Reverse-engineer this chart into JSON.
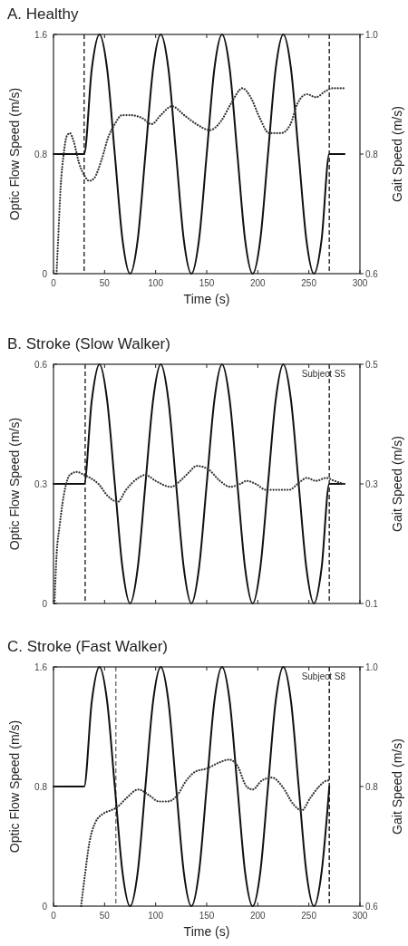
{
  "chart_data": [
    {
      "type": "line",
      "title": "A. Healthy",
      "xlabel": "Time (s)",
      "ylabel": "Optic Flow Speed (m/s)",
      "y2label": "Gait Speed (m/s)",
      "xlim": [
        0,
        300
      ],
      "xticks": [
        0,
        50,
        100,
        150,
        200,
        250,
        300
      ],
      "ylim": [
        0,
        1.6
      ],
      "yticks": [
        0,
        0.8,
        1.6
      ],
      "y2lim": [
        0.6,
        1.0
      ],
      "y2ticks": [
        0.6,
        0.8,
        {
          "value": 1.0,
          "label": "1.0"
        }
      ],
      "series": [
        {
          "color": "#111111",
          "line_style": "solid",
          "x": [
            0,
            30,
            37.5,
            45,
            52.5,
            60,
            67.5,
            75,
            82.5,
            90,
            97.5,
            105,
            112.5,
            120,
            127.5,
            135,
            142.5,
            150,
            157.5,
            165,
            172.5,
            180,
            187.5,
            195,
            202.5,
            210,
            217.5,
            225,
            232.5,
            240,
            247.5,
            255,
            262.5,
            270,
            285
          ],
          "values": [
            0.8,
            0.8,
            1.37,
            1.6,
            1.37,
            0.8,
            0.23,
            0,
            0.23,
            0.8,
            1.37,
            1.6,
            1.37,
            0.8,
            0.23,
            0,
            0.23,
            0.8,
            1.37,
            1.6,
            1.37,
            0.8,
            0.23,
            0,
            0.23,
            0.8,
            1.37,
            1.6,
            1.37,
            0.8,
            0.23,
            0,
            0.23,
            0.8,
            0.8
          ]
        },
        {
          "color": "#333333",
          "line_style": "dotted",
          "axis": "y2",
          "x": [
            3,
            4.5,
            7,
            10,
            13,
            16,
            20,
            25,
            30,
            35,
            40,
            47,
            54,
            60,
            67,
            75,
            87,
            96,
            105,
            116,
            128,
            140,
            153,
            164,
            174,
            185,
            193,
            202,
            211,
            223,
            232,
            239,
            248,
            257,
            266,
            273,
            284
          ],
          "values": [
            0.6,
            0.655,
            0.745,
            0.8,
            0.83,
            0.835,
            0.82,
            0.785,
            0.765,
            0.755,
            0.76,
            0.79,
            0.83,
            0.85,
            0.865,
            0.865,
            0.86,
            0.85,
            0.865,
            0.88,
            0.865,
            0.85,
            0.84,
            0.855,
            0.885,
            0.91,
            0.895,
            0.86,
            0.835,
            0.835,
            0.85,
            0.885,
            0.9,
            0.895,
            0.905,
            0.91,
            0.91
          ]
        }
      ],
      "ref_lines": [
        {
          "axis": "x",
          "value": 30,
          "color": "#333333",
          "line_style": "dashed"
        },
        {
          "axis": "x",
          "value": 270,
          "color": "#333333",
          "line_style": "dashed"
        }
      ]
    },
    {
      "type": "line",
      "title": "B. Stroke (Slow Walker)",
      "ylabel": "Optic Flow Speed (m/s)",
      "y2label": "Gait Speed (m/s)",
      "tick_labels": "y",
      "xlim": [
        0,
        300
      ],
      "xticks": [
        0,
        50,
        100,
        150,
        200,
        250,
        300
      ],
      "ylim": [
        0,
        0.6
      ],
      "yticks": [
        0,
        0.3,
        0.6
      ],
      "y2lim": [
        0.1,
        0.5
      ],
      "y2ticks": [
        0.1,
        0.3,
        0.5
      ],
      "series": [
        {
          "color": "#111111",
          "line_style": "solid",
          "x": [
            0,
            30,
            37.5,
            45,
            52.5,
            60,
            67.5,
            75,
            82.5,
            90,
            97.5,
            105,
            112.5,
            120,
            127.5,
            135,
            142.5,
            150,
            157.5,
            165,
            172.5,
            180,
            187.5,
            195,
            202.5,
            210,
            217.5,
            225,
            232.5,
            240,
            247.5,
            255,
            262.5,
            270,
            285
          ],
          "values": [
            0.3,
            0.3,
            0.51,
            0.6,
            0.51,
            0.3,
            0.09,
            0,
            0.09,
            0.3,
            0.51,
            0.6,
            0.51,
            0.3,
            0.09,
            0,
            0.09,
            0.3,
            0.51,
            0.6,
            0.51,
            0.3,
            0.09,
            0,
            0.09,
            0.3,
            0.51,
            0.6,
            0.51,
            0.3,
            0.09,
            0,
            0.09,
            0.3,
            0.3
          ]
        },
        {
          "color": "#333333",
          "line_style": "dotted",
          "axis": "y2",
          "x": [
            1,
            3,
            6,
            10,
            16,
            23,
            30,
            36,
            44,
            53,
            63,
            71,
            83,
            90,
            100,
            115,
            124,
            133,
            140,
            151,
            163,
            173,
            183,
            189,
            198,
            208,
            219,
            231,
            239,
            248,
            257,
            267,
            275,
            284
          ],
          "values": [
            0.1,
            0.18,
            0.23,
            0.28,
            0.315,
            0.32,
            0.315,
            0.31,
            0.3,
            0.28,
            0.27,
            0.29,
            0.31,
            0.315,
            0.305,
            0.295,
            0.305,
            0.32,
            0.33,
            0.325,
            0.305,
            0.295,
            0.3,
            0.305,
            0.3,
            0.29,
            0.29,
            0.29,
            0.3,
            0.31,
            0.305,
            0.31,
            0.305,
            0.3
          ]
        }
      ],
      "ref_lines": [
        {
          "axis": "x",
          "value": 31,
          "color": "#333333",
          "line_style": "dashed"
        },
        {
          "axis": "x",
          "value": 270,
          "color": "#333333",
          "line_style": "dashed"
        }
      ],
      "annotations": [
        "Subject S5"
      ]
    },
    {
      "type": "line",
      "title": "C. Stroke (Fast Walker)",
      "xlabel": "Time (s)",
      "ylabel": "Optic Flow Speed (m/s)",
      "y2label": "Gait Speed (m/s)",
      "xlim": [
        0,
        300
      ],
      "xticks": [
        0,
        50,
        100,
        150,
        200,
        250,
        300
      ],
      "ylim": [
        0,
        1.6
      ],
      "yticks": [
        0,
        0.8,
        1.6
      ],
      "y2lim": [
        0.6,
        1.0
      ],
      "y2ticks": [
        0.6,
        0.8,
        {
          "value": 1.0,
          "label": "1.0"
        }
      ],
      "series": [
        {
          "color": "#111111",
          "line_style": "solid",
          "x": [
            0,
            30,
            37.5,
            45,
            52.5,
            60,
            67.5,
            75,
            82.5,
            90,
            97.5,
            105,
            112.5,
            120,
            127.5,
            135,
            142.5,
            150,
            157.5,
            165,
            172.5,
            180,
            187.5,
            195,
            202.5,
            210,
            217.5,
            225,
            232.5,
            240,
            247.5,
            255,
            262.5,
            270
          ],
          "values": [
            0.8,
            0.8,
            1.37,
            1.6,
            1.37,
            0.8,
            0.23,
            0,
            0.23,
            0.8,
            1.37,
            1.6,
            1.37,
            0.8,
            0.23,
            0,
            0.23,
            0.8,
            1.37,
            1.6,
            1.37,
            0.8,
            0.23,
            0,
            0.23,
            0.8,
            1.37,
            1.6,
            1.37,
            0.8,
            0.23,
            0,
            0.23,
            0.8
          ]
        },
        {
          "color": "#333333",
          "line_style": "dotted",
          "axis": "y2",
          "x": [
            27,
            31,
            35,
            41,
            49,
            56,
            62,
            71,
            83,
            94,
            103,
            112,
            121,
            130,
            139,
            150,
            162,
            172,
            180,
            189,
            195,
            204,
            214,
            224,
            235,
            243,
            251,
            260,
            268,
            271
          ],
          "values": [
            0.6,
            0.655,
            0.705,
            0.74,
            0.755,
            0.76,
            0.765,
            0.78,
            0.795,
            0.785,
            0.775,
            0.775,
            0.785,
            0.81,
            0.825,
            0.83,
            0.84,
            0.845,
            0.835,
            0.8,
            0.795,
            0.81,
            0.815,
            0.8,
            0.77,
            0.76,
            0.78,
            0.8,
            0.81,
            0.81
          ]
        }
      ],
      "ref_lines": [
        {
          "axis": "x",
          "value": 61,
          "color": "#777777",
          "line_style": "dashed"
        },
        {
          "axis": "x",
          "value": 270,
          "color": "#222222",
          "line_style": "dashed"
        }
      ],
      "annotations": [
        "Subject S8"
      ]
    }
  ]
}
